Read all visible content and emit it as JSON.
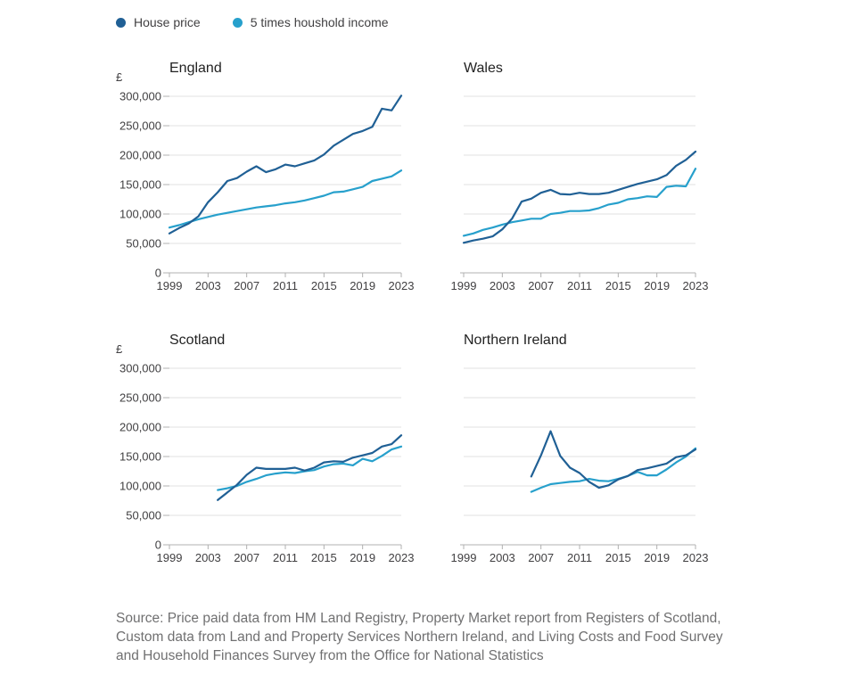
{
  "legend": {
    "items": [
      {
        "label": "House price",
        "color": "#206095"
      },
      {
        "label": "5 times houshold income",
        "color": "#27a0cc"
      }
    ]
  },
  "source_note": "Source: Price paid data from HM Land Registry, Property Market report from Registers of Scotland, Custom data from Land and Property Services Northern Ireland, and Living Costs and Food Survey and Household Finances Survey from the Office for National Statistics",
  "chart_data": [
    {
      "type": "line",
      "title": "England",
      "ylabel": "£",
      "ylim": [
        0,
        300000
      ],
      "yticks": [
        "0",
        "50,000",
        "100,000",
        "150,000",
        "200,000",
        "250,000",
        "300,000"
      ],
      "xticks": [
        "1999",
        "2003",
        "2007",
        "2011",
        "2015",
        "2019",
        "2023"
      ],
      "x": [
        1999,
        2000,
        2001,
        2002,
        2003,
        2004,
        2005,
        2006,
        2007,
        2008,
        2009,
        2010,
        2011,
        2012,
        2013,
        2014,
        2015,
        2016,
        2017,
        2018,
        2019,
        2020,
        2021,
        2022,
        2023
      ],
      "series": [
        {
          "name": "House price",
          "color": "#206095",
          "values": [
            67000,
            76000,
            84000,
            96000,
            120000,
            137000,
            156000,
            161000,
            172000,
            181000,
            171000,
            176000,
            184000,
            181000,
            186000,
            191000,
            201000,
            216000,
            226000,
            236000,
            241000,
            248000,
            279000,
            276000,
            301000
          ]
        },
        {
          "name": "5 times houshold income",
          "color": "#27a0cc",
          "values": [
            77000,
            81000,
            86000,
            91000,
            95000,
            99000,
            102000,
            105000,
            108000,
            111000,
            113000,
            115000,
            118000,
            120000,
            123000,
            127000,
            131000,
            137000,
            138000,
            142000,
            146000,
            156000,
            160000,
            164000,
            174000
          ]
        }
      ]
    },
    {
      "type": "line",
      "title": "Wales",
      "ylabel": "",
      "ylim": [
        0,
        300000
      ],
      "yticks": [],
      "xticks": [
        "1999",
        "2003",
        "2007",
        "2011",
        "2015",
        "2019",
        "2023"
      ],
      "x": [
        1999,
        2000,
        2001,
        2002,
        2003,
        2004,
        2005,
        2006,
        2007,
        2008,
        2009,
        2010,
        2011,
        2012,
        2013,
        2014,
        2015,
        2016,
        2017,
        2018,
        2019,
        2020,
        2021,
        2022,
        2023
      ],
      "series": [
        {
          "name": "House price",
          "color": "#206095",
          "values": [
            51000,
            55000,
            58000,
            62000,
            74000,
            92000,
            121000,
            126000,
            136000,
            141000,
            134000,
            133000,
            136000,
            134000,
            134000,
            136000,
            141000,
            146000,
            151000,
            155000,
            159000,
            166000,
            182000,
            192000,
            206000
          ]
        },
        {
          "name": "5 times houshold income",
          "color": "#27a0cc",
          "values": [
            63000,
            67000,
            73000,
            77000,
            82000,
            86000,
            89000,
            92000,
            92000,
            100000,
            102000,
            105000,
            105000,
            106000,
            110000,
            116000,
            119000,
            125000,
            127000,
            130000,
            129000,
            146000,
            148000,
            147000,
            177000
          ]
        }
      ]
    },
    {
      "type": "line",
      "title": "Scotland",
      "ylabel": "£",
      "ylim": [
        0,
        300000
      ],
      "yticks": [
        "0",
        "50,000",
        "100,000",
        "150,000",
        "200,000",
        "250,000",
        "300,000"
      ],
      "xticks": [
        "1999",
        "2003",
        "2007",
        "2011",
        "2015",
        "2019",
        "2023"
      ],
      "x": [
        2004,
        2005,
        2006,
        2007,
        2008,
        2009,
        2010,
        2011,
        2012,
        2013,
        2014,
        2015,
        2016,
        2017,
        2018,
        2019,
        2020,
        2021,
        2022,
        2023
      ],
      "series": [
        {
          "name": "House price",
          "color": "#206095",
          "values": [
            76000,
            89000,
            102000,
            119000,
            131000,
            129000,
            129000,
            129000,
            131000,
            126000,
            131000,
            140000,
            142000,
            141000,
            148000,
            152000,
            156000,
            167000,
            171000,
            186000
          ]
        },
        {
          "name": "5 times houshold income",
          "color": "#27a0cc",
          "values": [
            93000,
            96000,
            100000,
            107000,
            112000,
            118000,
            121000,
            123000,
            122000,
            125000,
            127000,
            133000,
            137000,
            138000,
            135000,
            146000,
            142000,
            151000,
            162000,
            167000
          ]
        }
      ]
    },
    {
      "type": "line",
      "title": "Northern Ireland",
      "ylabel": "",
      "ylim": [
        0,
        300000
      ],
      "yticks": [],
      "xticks": [
        "1999",
        "2003",
        "2007",
        "2011",
        "2015",
        "2019",
        "2023"
      ],
      "x": [
        2006,
        2007,
        2008,
        2009,
        2010,
        2011,
        2012,
        2013,
        2014,
        2015,
        2016,
        2017,
        2018,
        2019,
        2020,
        2021,
        2022,
        2023
      ],
      "series": [
        {
          "name": "House price",
          "color": "#206095",
          "values": [
            116000,
            152000,
            193000,
            151000,
            131000,
            122000,
            107000,
            97000,
            101000,
            111000,
            117000,
            127000,
            130000,
            134000,
            138000,
            149000,
            152000,
            162000
          ]
        },
        {
          "name": "5 times houshold income",
          "color": "#27a0cc",
          "values": [
            90000,
            97000,
            103000,
            105000,
            107000,
            108000,
            112000,
            109000,
            108000,
            112000,
            117000,
            124000,
            118000,
            118000,
            128000,
            140000,
            150000,
            164000
          ]
        }
      ]
    }
  ]
}
